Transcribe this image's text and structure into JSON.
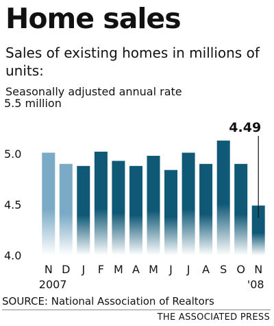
{
  "header": {
    "title": "Home sales",
    "subtitle": "Sales of existing homes in millions of units:",
    "note": "Seasonally adjusted annual rate"
  },
  "footer": {
    "source": "SOURCE: National Association of Realtors",
    "credit": "THE ASSOCIATED PRESS"
  },
  "chart_data": {
    "type": "bar",
    "title": "Home sales",
    "subtitle": "Sales of existing homes in millions of units:",
    "xlabel": "",
    "ylabel": "",
    "ylim": [
      4.0,
      5.5
    ],
    "yticks": [
      4.0,
      4.5,
      5.0,
      5.5
    ],
    "ytick_labels": [
      "4.0",
      "4.5",
      "5.0",
      "5.5 million"
    ],
    "categories": [
      "N",
      "D",
      "J",
      "F",
      "M",
      "A",
      "M",
      "J",
      "J",
      "A",
      "S",
      "O",
      "N"
    ],
    "year_labels": [
      {
        "index": 0,
        "label": "2007"
      },
      {
        "index": 12,
        "label": "'08"
      }
    ],
    "values": [
      5.01,
      4.9,
      4.88,
      5.02,
      4.93,
      4.88,
      4.98,
      4.84,
      5.01,
      4.9,
      5.13,
      4.9,
      4.49
    ],
    "highlight": {
      "index": 12,
      "label": "4.49"
    },
    "grid": false,
    "legend": "none",
    "colors": {
      "bar_2007": "#7aaac6",
      "bar_2008": "#0f5876",
      "bar_fade": "#ffffff"
    }
  }
}
